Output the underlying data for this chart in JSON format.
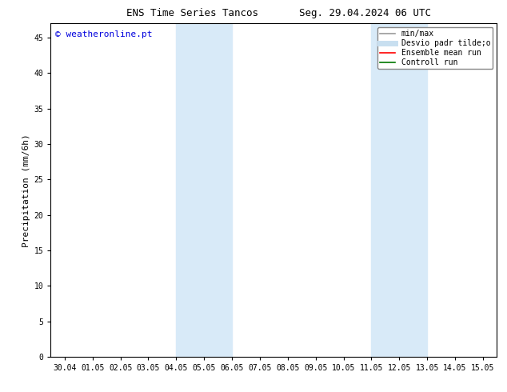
{
  "title_left": "ENS Time Series Tancos",
  "title_right": "Seg. 29.04.2024 06 UTC",
  "ylabel": "Precipitation (mm/6h)",
  "watermark": "© weatheronline.pt",
  "watermark_color": "#0000dd",
  "ylim": [
    0,
    47
  ],
  "yticks": [
    0,
    5,
    10,
    15,
    20,
    25,
    30,
    35,
    40,
    45
  ],
  "background_color": "#ffffff",
  "plot_bg_color": "#ffffff",
  "shaded_regions": [
    {
      "x_start": "04.05",
      "x_end": "06.05"
    },
    {
      "x_start": "11.05",
      "x_end": "13.05"
    }
  ],
  "shaded_color": "#d8eaf8",
  "xtick_labels": [
    "30.04",
    "01.05",
    "02.05",
    "03.05",
    "04.05",
    "05.05",
    "06.05",
    "07.05",
    "08.05",
    "09.05",
    "10.05",
    "11.05",
    "12.05",
    "13.05",
    "14.05",
    "15.05"
  ],
  "legend_entries": [
    {
      "label": "min/max",
      "color": "#999999",
      "linestyle": "-",
      "linewidth": 1.2
    },
    {
      "label": "Desvio padr tilde;o",
      "color": "#c8dff0",
      "linestyle": "-",
      "linewidth": 5
    },
    {
      "label": "Ensemble mean run",
      "color": "#ff0000",
      "linestyle": "-",
      "linewidth": 1.2
    },
    {
      "label": "Controll run",
      "color": "#007700",
      "linestyle": "-",
      "linewidth": 1.2
    }
  ],
  "title_fontsize": 9,
  "tick_fontsize": 7,
  "ylabel_fontsize": 8,
  "watermark_fontsize": 8,
  "legend_fontsize": 7
}
